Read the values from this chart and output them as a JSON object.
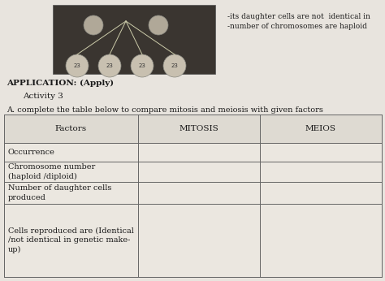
{
  "top_right_line1": "-its daughter cells are not  identical in",
  "top_right_line2": "-number of chromosomes are haploid",
  "app_label": "APPLICATION: (Apply)",
  "activity_label": "Activity 3",
  "instruction": "A. complete the table below to compare mitosis and meiosis with given factors",
  "col_headers": [
    "Factors",
    "MITOSIS",
    "MEIOS"
  ],
  "row_labels": [
    "Occurrence",
    "Chromosome number\n(haploid /diploid)",
    "Number of daughter cells\nproduced",
    "Cells reproduced are (Identical\n/not identical in genetic make-\nup)"
  ],
  "page_bg": "#cdc8bc",
  "content_bg": "#e8e4de",
  "table_bg": "#ebe7e0",
  "header_bg": "#dedad2",
  "border_color": "#666666",
  "text_color": "#1a1a1a",
  "font_size_header": 7.5,
  "font_size_body": 7.0,
  "font_size_app": 7.5,
  "font_size_top": 6.5,
  "fig_width": 4.74,
  "fig_height": 3.46
}
